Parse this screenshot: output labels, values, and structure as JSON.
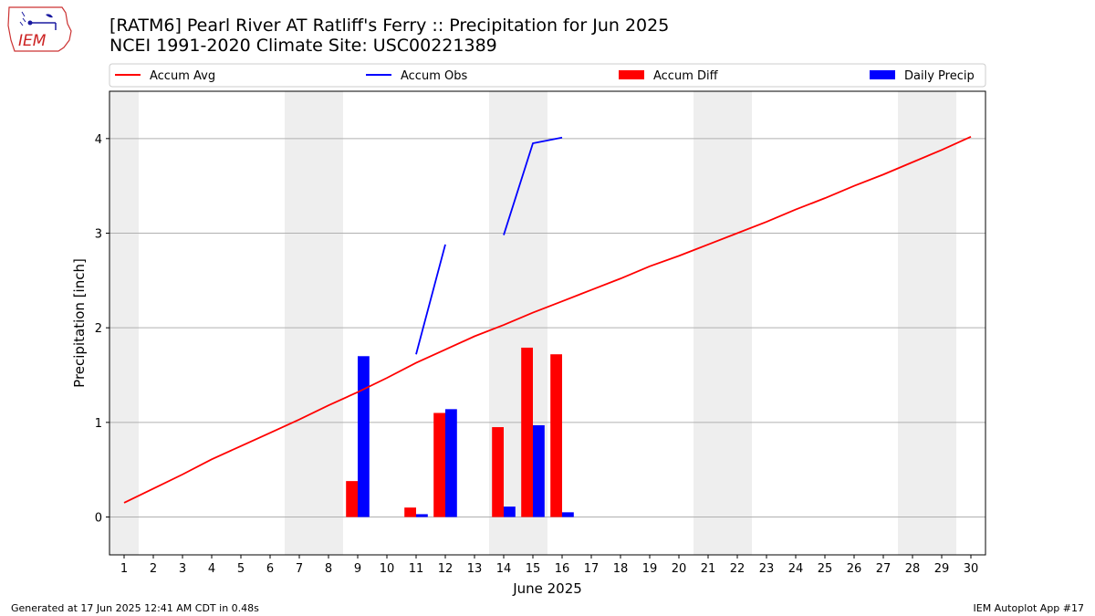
{
  "header": {
    "logo_text": "IEM",
    "title_line1": "[RATM6] Pearl River  AT Ratliff's Ferry :: Precipitation for Jun 2025",
    "title_line2": "NCEI 1991-2020 Climate Site: USC00221389"
  },
  "footer": {
    "generated": "Generated at 17 Jun 2025 12:41 AM CDT in 0.48s",
    "app": "IEM Autoplot App #17"
  },
  "colors": {
    "accum_avg": "#ff0000",
    "accum_obs": "#0000ff",
    "accum_diff": "#ff0000",
    "daily_precip": "#0000ff",
    "weekend_shade": "#eeeeee",
    "grid": "#b0b0b0"
  },
  "chart_data": {
    "type": "bar",
    "xlabel": "June 2025",
    "ylabel": "Precipitation [inch]",
    "xlim": [
      0.5,
      30.5
    ],
    "ylim": [
      -0.4,
      4.5
    ],
    "yticks": [
      0,
      1,
      2,
      3,
      4
    ],
    "grid": "horizontal",
    "legend_placement": "top",
    "legend": [
      "Accum Avg",
      "Accum Obs",
      "Accum Diff",
      "Daily Precip"
    ],
    "days": [
      1,
      2,
      3,
      4,
      5,
      6,
      7,
      8,
      9,
      10,
      11,
      12,
      13,
      14,
      15,
      16,
      17,
      18,
      19,
      20,
      21,
      22,
      23,
      24,
      25,
      26,
      27,
      28,
      29,
      30
    ],
    "weekend_days": [
      1,
      7,
      8,
      14,
      15,
      21,
      22,
      28,
      29
    ],
    "series": [
      {
        "name": "Accum Avg",
        "kind": "line",
        "values": [
          0.15,
          0.3,
          0.45,
          0.61,
          0.75,
          0.89,
          1.03,
          1.18,
          1.32,
          1.47,
          1.63,
          1.77,
          1.91,
          2.03,
          2.16,
          2.28,
          2.4,
          2.52,
          2.65,
          2.76,
          2.88,
          3.0,
          3.12,
          3.25,
          3.37,
          3.5,
          3.62,
          3.75,
          3.88,
          4.02
        ]
      },
      {
        "name": "Accum Obs",
        "kind": "line",
        "segments": [
          {
            "x": [
              11,
              12
            ],
            "y": [
              1.72,
              2.88
            ]
          },
          {
            "x": [
              14,
              15,
              16
            ],
            "y": [
              2.98,
              3.95,
              4.01
            ]
          }
        ]
      },
      {
        "name": "Accum Diff",
        "kind": "bar",
        "points": [
          {
            "x": 9,
            "y": 0.38
          },
          {
            "x": 11,
            "y": 0.1
          },
          {
            "x": 12,
            "y": 1.1
          },
          {
            "x": 14,
            "y": 0.95
          },
          {
            "x": 15,
            "y": 1.79
          },
          {
            "x": 16,
            "y": 1.72
          }
        ]
      },
      {
        "name": "Daily Precip",
        "kind": "bar",
        "points": [
          {
            "x": 9,
            "y": 1.7
          },
          {
            "x": 11,
            "y": 0.03
          },
          {
            "x": 12,
            "y": 1.14
          },
          {
            "x": 14,
            "y": 0.11
          },
          {
            "x": 15,
            "y": 0.97
          },
          {
            "x": 16,
            "y": 0.05
          }
        ]
      }
    ]
  }
}
